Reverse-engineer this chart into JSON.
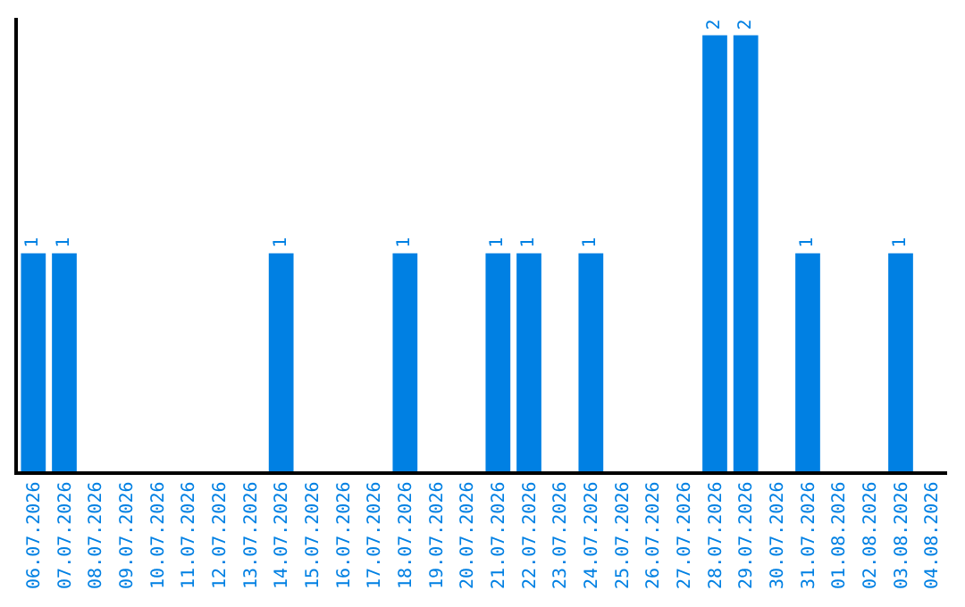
{
  "chart_data": {
    "type": "bar",
    "categories": [
      "06.07.2026",
      "07.07.2026",
      "08.07.2026",
      "09.07.2026",
      "10.07.2026",
      "11.07.2026",
      "12.07.2026",
      "13.07.2026",
      "14.07.2026",
      "15.07.2026",
      "16.07.2026",
      "17.07.2026",
      "18.07.2026",
      "19.07.2026",
      "20.07.2026",
      "21.07.2026",
      "22.07.2026",
      "23.07.2026",
      "24.07.2026",
      "25.07.2026",
      "26.07.2026",
      "27.07.2026",
      "28.07.2026",
      "29.07.2026",
      "30.07.2026",
      "31.07.2026",
      "01.08.2026",
      "02.08.2026",
      "03.08.2026",
      "04.08.2026"
    ],
    "values": [
      1,
      1,
      0,
      0,
      0,
      0,
      0,
      0,
      1,
      0,
      0,
      0,
      1,
      0,
      0,
      1,
      1,
      0,
      1,
      0,
      0,
      0,
      2,
      2,
      0,
      1,
      0,
      0,
      1,
      0
    ],
    "value_labels": [
      "1",
      "1",
      null,
      null,
      null,
      null,
      null,
      null,
      "1",
      null,
      null,
      null,
      "1",
      null,
      null,
      "1",
      "1",
      null,
      "1",
      null,
      null,
      null,
      "2",
      "2",
      null,
      "1",
      null,
      null,
      "1",
      null
    ],
    "color": "#0080e3"
  }
}
